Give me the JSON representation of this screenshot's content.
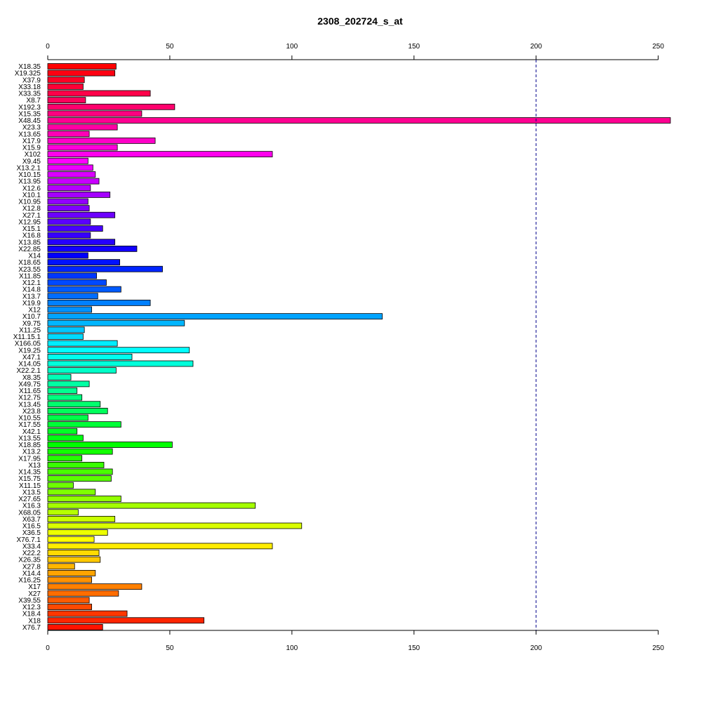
{
  "chart_data": {
    "type": "bar",
    "orientation": "horizontal",
    "title": "2308_202724_s_at",
    "xlabel": "",
    "ylabel": "",
    "xlim": [
      0,
      255
    ],
    "xticks": [
      0,
      50,
      100,
      150,
      200,
      250
    ],
    "reference_line": {
      "value": 200,
      "style": "dashed",
      "color": "#00008b"
    },
    "grid": false,
    "categories": [
      "X18.35",
      "X19.325",
      "X37.9",
      "X33.18",
      "X33.35",
      "X8.7",
      "X192.3",
      "X15.35",
      "X48.45",
      "X23.3",
      "X13.65",
      "X17.9",
      "X15.9",
      "X102",
      "X9.45",
      "X13.2.1",
      "X10.15",
      "X13.95",
      "X12.6",
      "X10.1",
      "X10.95",
      "X12.8",
      "X27.1",
      "X12.95",
      "X15.1",
      "X16.8",
      "X13.85",
      "X22.85",
      "X14",
      "X18.65",
      "X23.55",
      "X11.85",
      "X12.1",
      "X14.8",
      "X13.7",
      "X19.9",
      "X12",
      "X10.7",
      "X9.75",
      "X11.25",
      "X11.15.1",
      "X166.05",
      "X19.25",
      "X47.1",
      "X14.05",
      "X22.2.1",
      "X8.35",
      "X49.75",
      "X11.65",
      "X12.75",
      "X13.45",
      "X23.8",
      "X10.55",
      "X17.55",
      "X42.1",
      "X13.55",
      "X18.85",
      "X13.2",
      "X17.95",
      "X13",
      "X14.35",
      "X15.75",
      "X11.15",
      "X13.5",
      "X27.65",
      "X16.3",
      "X68.05",
      "X63.7",
      "X16.5",
      "X36.5",
      "X76.7.1",
      "X33.4",
      "X22.2",
      "X26.35",
      "X27.8",
      "X14.4",
      "X16.25",
      "X17",
      "X27",
      "X39.55",
      "X12.3",
      "X18.4",
      "X18",
      "X76.7"
    ],
    "values": [
      28,
      27.5,
      15,
      14.5,
      42,
      15.5,
      52,
      38.5,
      255,
      28.5,
      17,
      44,
      28.5,
      92,
      16.5,
      18.5,
      19.5,
      21,
      17.5,
      25.5,
      16.5,
      17,
      27.5,
      17.5,
      22.5,
      17.5,
      27.5,
      36.5,
      16.5,
      29.5,
      47,
      20,
      24,
      30,
      20.5,
      42,
      18,
      137,
      56,
      15,
      14.5,
      28.5,
      58,
      34.5,
      59.5,
      28,
      9.5,
      17,
      12,
      14,
      21.5,
      24.5,
      16.5,
      30,
      12,
      14.5,
      51,
      26.5,
      14,
      23,
      26.5,
      26,
      10.5,
      19.5,
      30,
      85,
      12.5,
      27.5,
      104,
      24.5,
      19,
      92,
      21,
      21.5,
      11,
      19.5,
      18,
      38.5,
      29,
      17,
      18,
      32.5,
      64,
      22.5
    ]
  }
}
